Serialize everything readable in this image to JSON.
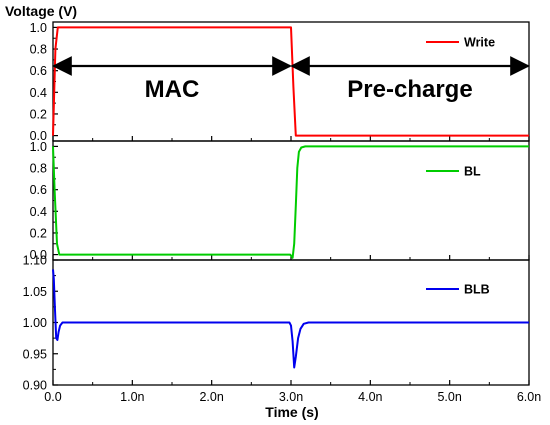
{
  "chart_data": {
    "type": "line",
    "xlabel": "Time (s)",
    "ylabel": "Voltage (V)",
    "x_ticks": [
      "0.0",
      "1.0n",
      "2.0n",
      "3.0n",
      "4.0n",
      "5.0n",
      "6.0n"
    ],
    "xlim": [
      0,
      6
    ],
    "x_unit": "ns",
    "panels": [
      {
        "series": [
          {
            "name": "Write",
            "color": "#ff0000",
            "x": [
              0,
              0.03,
              0.06,
              3.0,
              3.03,
              3.06,
              6.0
            ],
            "y": [
              0.0,
              0.8,
              1.0,
              1.0,
              0.45,
              0.0,
              0.0
            ]
          }
        ],
        "ylim": [
          -0.05,
          1.05
        ],
        "y_ticks": [
          {
            "label": "1.0",
            "value": 1.0
          },
          {
            "label": "0.8",
            "value": 0.8
          },
          {
            "label": "0.6",
            "value": 0.6
          },
          {
            "label": "0.4",
            "value": 0.4
          },
          {
            "label": "0.2",
            "value": 0.2
          },
          {
            "label": "0.0",
            "value": 0.0
          }
        ]
      },
      {
        "series": [
          {
            "name": "BL",
            "color": "#00cc00",
            "x": [
              0,
              0.02,
              0.05,
              0.08,
              2.99,
              3.02,
              3.04,
              3.06,
              3.08,
              3.1,
              3.13,
              3.18,
              6.0
            ],
            "y": [
              1.0,
              0.6,
              0.1,
              0.0,
              0.0,
              -0.03,
              0.1,
              0.45,
              0.8,
              0.95,
              0.99,
              1.0,
              1.0
            ]
          }
        ],
        "ylim": [
          -0.05,
          1.05
        ],
        "y_ticks": [
          {
            "label": "1.0",
            "value": 1.0
          },
          {
            "label": "0.8",
            "value": 0.8
          },
          {
            "label": "0.6",
            "value": 0.6
          },
          {
            "label": "0.4",
            "value": 0.4
          },
          {
            "label": "0.2",
            "value": 0.2
          },
          {
            "label": "0.0",
            "value": 0.0
          }
        ]
      },
      {
        "series": [
          {
            "name": "BLB",
            "color": "#0000ee",
            "x": [
              0,
              0.01,
              0.025,
              0.04,
              0.055,
              0.07,
              0.09,
              0.12,
              0.16,
              2.98,
              3.0,
              3.02,
              3.04,
              3.06,
              3.09,
              3.12,
              3.16,
              3.22,
              6.0
            ],
            "y": [
              1.085,
              1.07,
              1.02,
              0.975,
              0.972,
              0.985,
              0.995,
              1.0,
              1.0,
              1.0,
              0.995,
              0.97,
              0.928,
              0.945,
              0.975,
              0.99,
              0.998,
              1.0,
              1.0
            ]
          }
        ],
        "ylim": [
          0.9,
          1.1
        ],
        "y_ticks": [
          {
            "label": "1.10",
            "value": 1.1
          },
          {
            "label": "1.05",
            "value": 1.05
          },
          {
            "label": "1.00",
            "value": 1.0
          },
          {
            "label": "0.95",
            "value": 0.95
          },
          {
            "label": "0.90",
            "value": 0.9
          }
        ]
      }
    ],
    "annotations": [
      {
        "text": "MAC",
        "x_start": 0,
        "x_end": 3.0
      },
      {
        "text": "Pre-charge",
        "x_start": 3.0,
        "x_end": 6.0
      }
    ],
    "legend_position": "top-right"
  }
}
